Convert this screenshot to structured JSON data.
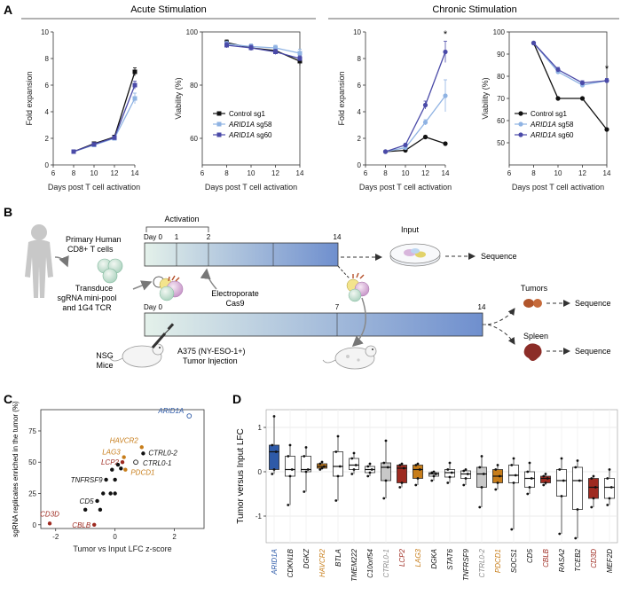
{
  "panels": {
    "a": "A",
    "b": "B",
    "c": "C",
    "d": "D"
  },
  "headers": {
    "acute": "Acute Stimulation",
    "chronic": "Chronic Stimulation"
  },
  "colors": {
    "control": "#111111",
    "sg58": "#8fb3e3",
    "sg60": "#4a4aa8",
    "aridblue": "#2d5aa8",
    "red": "#9e2a20",
    "orange": "#c77d1a",
    "gray": "#8a8a8a"
  },
  "legend": {
    "control": "Control sg1",
    "sg58_gene": "ARID1A",
    "sg58_rest": " sg58",
    "sg60_gene": "ARID1A",
    "sg60_rest": " sg60"
  },
  "schematic": {
    "primary": "Primary Human",
    "cd8": "CD8+ T cells",
    "activation": "Activation",
    "d0": "Day 0",
    "d1": "1",
    "d2": "2",
    "d14": "14",
    "input": "Input",
    "sequence": "Sequence",
    "transduce1": "Transduce",
    "transduce2": "sgRNA mini-pool",
    "transduce3": "and 1G4 TCR",
    "electro1": "Electroporate",
    "electro2": "Cas9",
    "d0b": "Day 0",
    "d7": "7",
    "d14b": "14",
    "nsg1": "NSG",
    "nsg2": "Mice",
    "a3751": "A375 (NY-ESO-1+)",
    "a3752": "Tumor Injection",
    "tumors": "Tumors",
    "spleen": "Spleen"
  },
  "chart_data": [
    {
      "id": "acute-fold",
      "type": "line",
      "xlabel": "Days post T cell activation",
      "ylabel": "Fold expansion",
      "xlim": [
        6,
        14
      ],
      "ylim": [
        0,
        10
      ],
      "xticks": [
        6,
        8,
        10,
        12,
        14
      ],
      "yticks": [
        0,
        2,
        4,
        6,
        8,
        10
      ],
      "x": [
        8,
        10,
        12,
        14
      ],
      "series": [
        {
          "name": "Control sg1",
          "values": [
            1.0,
            1.6,
            2.1,
            7.0
          ],
          "err": [
            0,
            0.1,
            0.1,
            0.3
          ]
        },
        {
          "name": "ARID1A sg58",
          "values": [
            1.0,
            1.5,
            2.0,
            5.0
          ],
          "err": [
            0,
            0.1,
            0.1,
            0.4
          ]
        },
        {
          "name": "ARID1A sg60",
          "values": [
            1.0,
            1.55,
            2.05,
            6.0
          ],
          "err": [
            0,
            0.1,
            0.1,
            0.3
          ]
        }
      ]
    },
    {
      "id": "acute-viab",
      "type": "line",
      "xlabel": "Days post T cell activation",
      "ylabel": "Viability (%)",
      "xlim": [
        6,
        14
      ],
      "ylim": [
        50,
        100
      ],
      "xticks": [
        6,
        8,
        10,
        12,
        14
      ],
      "yticks": [
        60,
        80,
        100
      ],
      "x": [
        8,
        10,
        12,
        14
      ],
      "series": [
        {
          "name": "Control sg1",
          "values": [
            96,
            94,
            93,
            89
          ],
          "err": [
            1,
            1,
            1,
            1.5
          ]
        },
        {
          "name": "ARID1A sg58",
          "values": [
            95.5,
            94.5,
            94,
            92
          ],
          "err": [
            1,
            1,
            1,
            1.5
          ]
        },
        {
          "name": "ARID1A sg60",
          "values": [
            95,
            94,
            92.5,
            90
          ],
          "err": [
            1,
            1,
            1,
            1
          ]
        }
      ]
    },
    {
      "id": "chronic-fold",
      "type": "line",
      "xlabel": "Days post T cell activation",
      "ylabel": "Fold expansion",
      "xlim": [
        6,
        14
      ],
      "ylim": [
        0,
        10
      ],
      "xticks": [
        6,
        8,
        10,
        12,
        14
      ],
      "yticks": [
        0,
        2,
        4,
        6,
        8,
        10
      ],
      "x": [
        8,
        10,
        12,
        14
      ],
      "annotation": {
        "x": 14,
        "y": 9.6,
        "text": "*"
      },
      "series": [
        {
          "name": "Control sg1",
          "values": [
            1.0,
            1.1,
            2.1,
            1.6
          ],
          "err": [
            0,
            0.1,
            0.1,
            0.1
          ]
        },
        {
          "name": "ARID1A sg58",
          "values": [
            1.0,
            1.3,
            3.2,
            5.2
          ],
          "err": [
            0,
            0.1,
            0.2,
            1.2
          ]
        },
        {
          "name": "ARID1A sg60",
          "values": [
            1.0,
            1.5,
            4.5,
            8.5
          ],
          "err": [
            0,
            0.1,
            0.3,
            0.8
          ]
        }
      ]
    },
    {
      "id": "chronic-viab",
      "type": "line",
      "xlabel": "Days post T cell activation",
      "ylabel": "Viability (%)",
      "xlim": [
        6,
        14
      ],
      "ylim": [
        40,
        100
      ],
      "xticks": [
        6,
        8,
        10,
        12,
        14
      ],
      "yticks": [
        50,
        60,
        70,
        80,
        90,
        100
      ],
      "x": [
        8,
        10,
        12,
        14
      ],
      "annotation": {
        "x": 14,
        "y": 82,
        "text": "*"
      },
      "series": [
        {
          "name": "Control sg1",
          "values": [
            95,
            70,
            70,
            56
          ],
          "err": [
            0,
            0,
            0,
            0
          ]
        },
        {
          "name": "ARID1A sg58",
          "values": [
            95,
            82,
            76,
            78
          ],
          "err": [
            0,
            1,
            1,
            1
          ]
        },
        {
          "name": "ARID1A sg60",
          "values": [
            95,
            83,
            77,
            78
          ],
          "err": [
            0,
            1,
            1,
            1
          ]
        }
      ]
    },
    {
      "id": "scatter-c",
      "type": "scatter",
      "xlabel": "Tumor vs Input LFC z-score",
      "ylabel": "sgRNA replicates enriched in the tumor (%)",
      "xlim": [
        -2.5,
        3.0
      ],
      "ylim": [
        -3,
        92
      ],
      "xticks": [
        -2,
        0,
        2
      ],
      "yticks": [
        0,
        25,
        50,
        75
      ],
      "points": [
        {
          "x": 2.5,
          "y": 87,
          "label": "ARID1A",
          "color": "aridblue",
          "open": true
        },
        {
          "x": 0.9,
          "y": 62,
          "label": "HAVCR2",
          "color": "orange"
        },
        {
          "x": 0.95,
          "y": 57,
          "label": "CTRL0-2",
          "color": "black"
        },
        {
          "x": 0.7,
          "y": 50,
          "label": "CTRL0-1",
          "color": "black",
          "open": true
        },
        {
          "x": 0.3,
          "y": 54,
          "label": "LAG3",
          "color": "orange"
        },
        {
          "x": 0.25,
          "y": 50,
          "label": "LCP2",
          "color": "red"
        },
        {
          "x": 0.35,
          "y": 44,
          "label": "PDCD1",
          "color": "orange"
        },
        {
          "x": -0.3,
          "y": 36,
          "label": "TNFRSF9",
          "color": "black"
        },
        {
          "x": -0.6,
          "y": 19,
          "label": "CD5",
          "color": "black"
        },
        {
          "x": -2.2,
          "y": 1,
          "label": "CD3D",
          "color": "red"
        },
        {
          "x": -0.7,
          "y": 0,
          "label": "CBLB",
          "color": "red"
        },
        {
          "x": 0.1,
          "y": 48,
          "label": "",
          "color": "black"
        },
        {
          "x": -0.1,
          "y": 44,
          "label": "",
          "color": "black"
        },
        {
          "x": 0.0,
          "y": 36,
          "label": "",
          "color": "black"
        },
        {
          "x": -0.15,
          "y": 25,
          "label": "",
          "color": "black"
        },
        {
          "x": 0.0,
          "y": 25,
          "label": "",
          "color": "black"
        },
        {
          "x": -0.4,
          "y": 25,
          "label": "",
          "color": "black"
        },
        {
          "x": -1.0,
          "y": 12,
          "label": "",
          "color": "black"
        },
        {
          "x": -0.5,
          "y": 12,
          "label": "",
          "color": "black"
        },
        {
          "x": 0.2,
          "y": 45,
          "label": "",
          "color": "black"
        }
      ]
    },
    {
      "id": "box-d",
      "type": "box",
      "xlabel": "",
      "ylabel": "Tumor versus Input LFC",
      "ylim": [
        -1.6,
        1.4
      ],
      "yticks": [
        -1,
        0,
        1
      ],
      "categories": [
        "ARID1A",
        "CDKN1B",
        "DGKZ",
        "HAVCR2",
        "BTLA",
        "TMEM222",
        "C10orf54",
        "CTRL0-1",
        "LCP2",
        "LAG3",
        "DGKA",
        "STAT6",
        "TNFRSF9",
        "CTRL0-2",
        "PDCD1",
        "SOCS1",
        "CD5",
        "CBLB",
        "RASA2",
        "TCEB2",
        "CD3D",
        "MEF2D"
      ],
      "label_colors": [
        "aridblue",
        "black",
        "black",
        "orange",
        "black",
        "black",
        "black",
        "gray",
        "red",
        "orange",
        "black",
        "black",
        "black",
        "gray",
        "orange",
        "black",
        "black",
        "red",
        "black",
        "black",
        "red",
        "black"
      ],
      "fill_colors": [
        "#2e5aa8",
        "#ffffff",
        "#ffffff",
        "#c77d1a",
        "#ffffff",
        "#ffffff",
        "#ffffff",
        "#c8c8c8",
        "#9e2a20",
        "#c77d1a",
        "#ffffff",
        "#ffffff",
        "#ffffff",
        "#c8c8c8",
        "#c77d1a",
        "#ffffff",
        "#ffffff",
        "#9e2a20",
        "#ffffff",
        "#ffffff",
        "#9e2a20",
        "#ffffff"
      ],
      "boxes": [
        {
          "q1": 0.05,
          "med": 0.45,
          "q3": 0.6,
          "lo": -0.05,
          "hi": 1.25
        },
        {
          "q1": -0.1,
          "med": 0.05,
          "q3": 0.35,
          "lo": -0.75,
          "hi": 0.6
        },
        {
          "q1": 0.0,
          "med": 0.05,
          "q3": 0.35,
          "lo": -0.45,
          "hi": 0.55
        },
        {
          "q1": 0.08,
          "med": 0.12,
          "q3": 0.18,
          "lo": 0.05,
          "hi": 0.22
        },
        {
          "q1": -0.1,
          "med": 0.12,
          "q3": 0.45,
          "lo": -0.65,
          "hi": 0.8
        },
        {
          "q1": 0.05,
          "med": 0.15,
          "q3": 0.3,
          "lo": -0.05,
          "hi": 0.42
        },
        {
          "q1": -0.02,
          "med": 0.05,
          "q3": 0.12,
          "lo": -0.1,
          "hi": 0.18
        },
        {
          "q1": -0.2,
          "med": 0.1,
          "q3": 0.2,
          "lo": -0.6,
          "hi": 0.7
        },
        {
          "q1": -0.25,
          "med": 0.08,
          "q3": 0.15,
          "lo": -0.35,
          "hi": 0.18
        },
        {
          "q1": -0.15,
          "med": 0.05,
          "q3": 0.15,
          "lo": -0.3,
          "hi": 0.18
        },
        {
          "q1": -0.1,
          "med": -0.05,
          "q3": -0.02,
          "lo": -0.2,
          "hi": 0.0
        },
        {
          "q1": -0.12,
          "med": -0.02,
          "q3": 0.05,
          "lo": -0.25,
          "hi": 0.2
        },
        {
          "q1": -0.15,
          "med": -0.05,
          "q3": 0.02,
          "lo": -0.3,
          "hi": 0.05
        },
        {
          "q1": -0.35,
          "med": -0.05,
          "q3": 0.1,
          "lo": -0.8,
          "hi": 0.35
        },
        {
          "q1": -0.25,
          "med": -0.1,
          "q3": 0.05,
          "lo": -0.4,
          "hi": 0.15
        },
        {
          "q1": -0.25,
          "med": -0.08,
          "q3": 0.15,
          "lo": -1.3,
          "hi": 0.3
        },
        {
          "q1": -0.35,
          "med": -0.15,
          "q3": 0.0,
          "lo": -0.5,
          "hi": 0.2
        },
        {
          "q1": -0.25,
          "med": -0.15,
          "q3": -0.1,
          "lo": -0.3,
          "hi": -0.05
        },
        {
          "q1": -0.55,
          "med": -0.2,
          "q3": 0.05,
          "lo": -1.4,
          "hi": 0.3
        },
        {
          "q1": -0.85,
          "med": -0.2,
          "q3": 0.1,
          "lo": -1.5,
          "hi": 0.25
        },
        {
          "q1": -0.6,
          "med": -0.35,
          "q3": -0.15,
          "lo": -0.8,
          "hi": -0.1
        },
        {
          "q1": -0.6,
          "med": -0.35,
          "q3": -0.15,
          "lo": -0.75,
          "hi": 0.05
        }
      ]
    }
  ]
}
